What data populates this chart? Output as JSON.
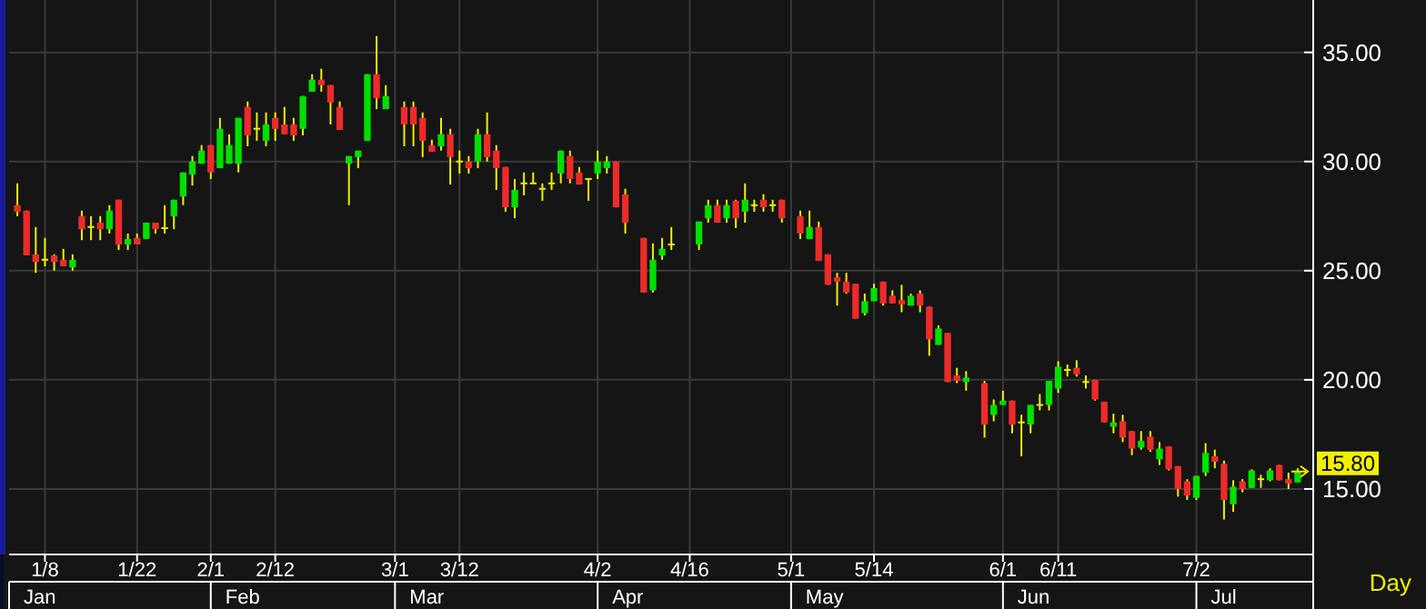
{
  "chart_data": {
    "type": "candlestick",
    "xlabel": "Day",
    "categories": [
      null,
      null,
      null,
      "1/8",
      null,
      null,
      null,
      null,
      null,
      null,
      null,
      null,
      null,
      "1/22",
      null,
      null,
      null,
      null,
      null,
      null,
      null,
      "2/1",
      null,
      null,
      null,
      null,
      null,
      null,
      "2/12",
      null,
      null,
      null,
      null,
      null,
      null,
      null,
      null,
      null,
      null,
      null,
      null,
      "3/1",
      null,
      null,
      null,
      null,
      null,
      null,
      "3/12",
      null,
      null,
      null,
      null,
      null,
      null,
      null,
      null,
      null,
      null,
      null,
      null,
      null,
      null,
      "4/2",
      null,
      null,
      null,
      null,
      null,
      null,
      null,
      null,
      null,
      "4/16",
      null,
      null,
      null,
      null,
      null,
      null,
      null,
      null,
      null,
      null,
      "5/1",
      null,
      null,
      null,
      null,
      null,
      null,
      null,
      null,
      "5/14",
      null,
      null,
      null,
      null,
      null,
      null,
      null,
      null,
      null,
      null,
      null,
      null,
      null,
      "6/1",
      null,
      null,
      null,
      null,
      null,
      "6/11",
      null,
      null,
      null,
      null,
      null,
      null,
      null,
      null,
      null,
      null,
      null,
      null,
      null,
      null,
      "7/2",
      null,
      null,
      null,
      null,
      null,
      null,
      null,
      null,
      null,
      null,
      null
    ],
    "ohlc": [
      [
        28.0,
        29.0,
        27.5,
        27.7
      ],
      [
        27.75,
        27.75,
        25.7,
        25.7
      ],
      [
        25.75,
        27.0,
        24.9,
        25.4
      ],
      [
        25.5,
        26.5,
        25.2,
        25.5
      ],
      [
        25.7,
        25.75,
        25.0,
        25.4
      ],
      [
        25.5,
        26.0,
        25.2,
        25.2
      ],
      [
        25.15,
        25.75,
        25.0,
        25.5
      ],
      [
        27.5,
        27.75,
        26.4,
        26.9
      ],
      [
        27.0,
        27.5,
        26.4,
        27.0
      ],
      [
        27.2,
        27.5,
        26.4,
        26.9
      ],
      [
        26.9,
        28.0,
        26.7,
        27.75
      ],
      [
        28.25,
        28.25,
        25.95,
        26.2
      ],
      [
        26.2,
        26.7,
        25.95,
        26.45
      ],
      [
        26.5,
        26.7,
        26.2,
        26.2
      ],
      [
        26.45,
        27.2,
        26.45,
        27.2
      ],
      [
        27.2,
        27.2,
        26.7,
        26.9
      ],
      [
        26.95,
        28.0,
        26.7,
        26.95
      ],
      [
        27.5,
        28.25,
        26.9,
        28.25
      ],
      [
        28.4,
        29.5,
        28.0,
        29.5
      ],
      [
        29.4,
        30.25,
        28.9,
        30.0
      ],
      [
        29.9,
        30.75,
        29.9,
        30.5
      ],
      [
        30.75,
        30.75,
        29.2,
        29.5
      ],
      [
        29.7,
        32.0,
        29.7,
        31.5
      ],
      [
        29.9,
        31.25,
        29.9,
        30.75
      ],
      [
        29.9,
        32.0,
        29.5,
        32.0
      ],
      [
        32.5,
        32.75,
        30.7,
        31.2
      ],
      [
        31.5,
        32.25,
        30.95,
        31.5
      ],
      [
        30.95,
        32.25,
        30.7,
        31.7
      ],
      [
        32.0,
        32.25,
        30.95,
        31.5
      ],
      [
        31.7,
        32.5,
        31.25,
        31.25
      ],
      [
        31.7,
        32.0,
        30.95,
        31.2
      ],
      [
        31.5,
        33.0,
        31.2,
        33.0
      ],
      [
        33.2,
        34.0,
        33.2,
        33.75
      ],
      [
        33.75,
        34.25,
        33.2,
        33.5
      ],
      [
        33.5,
        33.5,
        31.7,
        32.7
      ],
      [
        32.5,
        32.75,
        31.45,
        31.45
      ],
      [
        29.9,
        30.25,
        28.0,
        30.25
      ],
      [
        30.2,
        30.5,
        29.7,
        30.5
      ],
      [
        30.95,
        34.0,
        30.95,
        34.0
      ],
      [
        34.0,
        35.75,
        32.4,
        32.9
      ],
      [
        32.4,
        33.5,
        32.4,
        33.0
      ],
      null,
      [
        32.5,
        32.75,
        30.7,
        31.7
      ],
      [
        32.5,
        32.75,
        30.7,
        31.7
      ],
      [
        32.0,
        32.25,
        30.2,
        30.95
      ],
      [
        30.75,
        31.0,
        30.45,
        30.45
      ],
      [
        30.7,
        32.0,
        30.5,
        31.25
      ],
      [
        31.25,
        31.5,
        28.95,
        30.2
      ],
      [
        30.0,
        30.5,
        29.45,
        30.0
      ],
      [
        30.0,
        30.25,
        29.45,
        29.7
      ],
      [
        30.0,
        31.5,
        29.7,
        31.25
      ],
      [
        31.25,
        32.25,
        30.0,
        30.2
      ],
      [
        30.5,
        30.75,
        28.7,
        29.7
      ],
      [
        29.75,
        29.75,
        27.7,
        27.9
      ],
      [
        27.9,
        29.2,
        27.4,
        28.7
      ],
      [
        29.0,
        29.5,
        28.45,
        29.0
      ],
      [
        29.0,
        29.5,
        29.0,
        29.0
      ],
      [
        28.75,
        29.0,
        28.2,
        28.75
      ],
      [
        29.0,
        29.5,
        28.7,
        29.0
      ],
      [
        29.45,
        30.5,
        29.0,
        30.5
      ],
      [
        30.25,
        30.5,
        29.0,
        29.2
      ],
      [
        29.5,
        29.75,
        28.95,
        28.95
      ],
      [
        29.2,
        29.2,
        28.2,
        29.2
      ],
      [
        29.45,
        30.5,
        29.2,
        30.0
      ],
      [
        29.7,
        30.25,
        29.45,
        30.0
      ],
      [
        30.0,
        30.0,
        27.9,
        27.9
      ],
      [
        28.5,
        28.75,
        26.7,
        27.2
      ],
      null,
      [
        26.5,
        26.5,
        24.0,
        24.0
      ],
      [
        24.1,
        26.25,
        24.0,
        25.5
      ],
      [
        25.7,
        26.5,
        25.5,
        26.0
      ],
      [
        26.2,
        27.0,
        25.95,
        26.2
      ],
      null,
      null,
      [
        26.2,
        27.25,
        25.95,
        27.25
      ],
      [
        27.4,
        28.25,
        27.2,
        28.0
      ],
      [
        28.0,
        28.25,
        27.2,
        27.2
      ],
      [
        27.4,
        28.25,
        27.2,
        28.0
      ],
      [
        28.2,
        28.25,
        26.95,
        27.4
      ],
      [
        27.7,
        29.0,
        27.2,
        28.25
      ],
      [
        28.0,
        28.25,
        27.7,
        28.0
      ],
      [
        28.25,
        28.5,
        27.7,
        27.9
      ],
      [
        28.0,
        28.25,
        27.7,
        28.0
      ],
      [
        28.25,
        28.25,
        27.2,
        27.4
      ],
      null,
      [
        27.5,
        27.75,
        26.45,
        26.7
      ],
      [
        26.45,
        27.75,
        26.45,
        27.0
      ],
      [
        27.0,
        27.25,
        25.45,
        25.45
      ],
      [
        25.75,
        25.75,
        24.35,
        24.35
      ],
      [
        24.7,
        24.9,
        23.4,
        24.5
      ],
      [
        24.5,
        24.9,
        23.95,
        24.0
      ],
      [
        24.4,
        24.4,
        22.8,
        22.8
      ],
      [
        23.05,
        23.95,
        22.95,
        23.6
      ],
      [
        23.6,
        24.4,
        23.6,
        24.2
      ],
      [
        24.5,
        24.5,
        23.4,
        23.5
      ],
      [
        23.85,
        24.1,
        23.5,
        23.5
      ],
      [
        23.65,
        24.35,
        23.1,
        23.45
      ],
      [
        23.4,
        23.95,
        23.4,
        23.85
      ],
      [
        23.95,
        24.1,
        23.1,
        23.4
      ],
      [
        23.35,
        23.35,
        21.1,
        21.85
      ],
      [
        21.6,
        22.5,
        21.6,
        22.35
      ],
      [
        22.15,
        22.15,
        19.9,
        19.9
      ],
      [
        20.2,
        20.55,
        19.85,
        19.95
      ],
      [
        19.9,
        20.4,
        19.5,
        20.1
      ],
      null,
      [
        19.85,
        19.95,
        17.35,
        17.95
      ],
      [
        18.4,
        19.1,
        18.1,
        18.85
      ],
      [
        18.85,
        19.5,
        18.85,
        19.05
      ],
      [
        19.05,
        19.05,
        17.55,
        17.95
      ],
      [
        18.05,
        18.4,
        16.5,
        18.05
      ],
      [
        17.95,
        18.85,
        17.55,
        18.85
      ],
      [
        18.85,
        19.35,
        18.6,
        18.85
      ],
      [
        18.85,
        19.95,
        18.6,
        19.95
      ],
      [
        19.6,
        20.85,
        19.4,
        20.6
      ],
      [
        20.45,
        20.7,
        20.15,
        20.45
      ],
      [
        20.55,
        20.9,
        20.15,
        20.25
      ],
      [
        19.9,
        20.2,
        19.6,
        19.9
      ],
      [
        20.0,
        20.0,
        19.05,
        19.1
      ],
      [
        19.0,
        19.0,
        18.05,
        18.05
      ],
      [
        17.85,
        18.45,
        17.55,
        18.05
      ],
      [
        18.1,
        18.4,
        17.15,
        17.35
      ],
      [
        17.65,
        17.65,
        16.55,
        16.85
      ],
      [
        16.9,
        17.65,
        16.8,
        17.2
      ],
      [
        17.4,
        17.65,
        16.7,
        16.8
      ],
      [
        16.35,
        17.15,
        16.1,
        16.85
      ],
      [
        16.95,
        16.95,
        15.85,
        15.9
      ],
      [
        16.05,
        16.05,
        14.65,
        15.0
      ],
      [
        15.35,
        15.45,
        14.5,
        14.7
      ],
      [
        14.6,
        15.6,
        14.5,
        15.6
      ],
      [
        15.75,
        17.1,
        15.6,
        16.65
      ],
      [
        16.5,
        16.8,
        15.95,
        16.25
      ],
      [
        16.15,
        16.3,
        13.6,
        14.5
      ],
      [
        14.3,
        15.4,
        13.95,
        15.1
      ],
      [
        15.35,
        15.45,
        14.85,
        15.0
      ],
      [
        15.05,
        15.9,
        15.05,
        15.85
      ],
      [
        15.45,
        15.65,
        15.05,
        15.45
      ],
      [
        15.4,
        15.95,
        15.35,
        15.85
      ],
      [
        16.1,
        16.1,
        15.4,
        15.4
      ],
      [
        15.45,
        15.75,
        15.0,
        15.25
      ],
      [
        15.3,
        15.95,
        15.3,
        15.8
      ]
    ],
    "ylim": [
      12,
      37.4
    ],
    "yticks": [
      {
        "value": 15,
        "label": "15.00"
      },
      {
        "value": 20,
        "label": "20.00"
      },
      {
        "value": 25,
        "label": "25.00"
      },
      {
        "value": 30,
        "label": "30.00"
      },
      {
        "value": 35,
        "label": "35.00"
      }
    ],
    "grid": true,
    "annotations": [
      "Jan",
      "Feb",
      "Mar",
      "Apr",
      "May",
      "Jun",
      "Jul"
    ],
    "ref_lines": [
      {
        "axis": "y",
        "value": 15.8,
        "label": "15.80",
        "color": "#f0f000"
      }
    ]
  }
}
